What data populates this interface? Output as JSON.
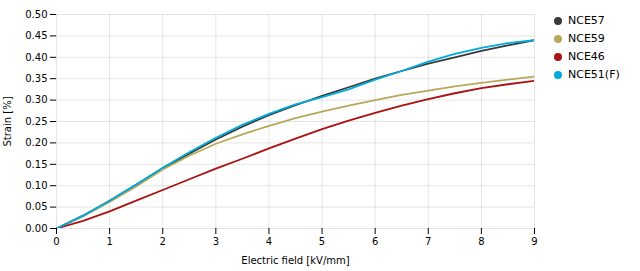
{
  "chart_data": {
    "type": "line",
    "xlabel": "Electric field [kV/mm]",
    "ylabel": "Strain [%]",
    "x": [
      0,
      0.5,
      1,
      1.5,
      2,
      2.5,
      3,
      3.5,
      4,
      4.5,
      5,
      5.5,
      6,
      6.5,
      7,
      7.5,
      8,
      8.5,
      9
    ],
    "series": [
      {
        "name": "NCE57",
        "color": "#3a3a3a",
        "values": [
          0.0,
          0.03,
          0.065,
          0.102,
          0.14,
          0.175,
          0.208,
          0.238,
          0.265,
          0.288,
          0.31,
          0.33,
          0.35,
          0.368,
          0.385,
          0.4,
          0.415,
          0.428,
          0.44
        ]
      },
      {
        "name": "NCE59",
        "color": "#b8a85a",
        "values": [
          0.0,
          0.028,
          0.062,
          0.098,
          0.138,
          0.17,
          0.198,
          0.22,
          0.24,
          0.258,
          0.273,
          0.287,
          0.3,
          0.312,
          0.322,
          0.332,
          0.34,
          0.348,
          0.355
        ]
      },
      {
        "name": "NCE46",
        "color": "#aa1111",
        "values": [
          0.0,
          0.018,
          0.04,
          0.065,
          0.09,
          0.115,
          0.14,
          0.163,
          0.187,
          0.21,
          0.232,
          0.252,
          0.27,
          0.287,
          0.302,
          0.316,
          0.328,
          0.337,
          0.345
        ]
      },
      {
        "name": "NCE51(F)",
        "color": "#00aadd",
        "values": [
          0.0,
          0.03,
          0.065,
          0.103,
          0.142,
          0.178,
          0.212,
          0.242,
          0.268,
          0.29,
          0.307,
          0.325,
          0.348,
          0.368,
          0.39,
          0.408,
          0.422,
          0.433,
          0.44
        ]
      }
    ],
    "xlim": [
      0,
      9
    ],
    "xticks": [
      0,
      1,
      2,
      3,
      4,
      5,
      6,
      7,
      8,
      9
    ],
    "ylim": [
      0,
      0.5
    ],
    "yticks": [
      {
        "value": 0,
        "label": "0.00"
      },
      0.05,
      {
        "value": 0.1,
        "label": "0.10"
      },
      0.15,
      {
        "value": 0.2,
        "label": "0.20"
      },
      0.25,
      {
        "value": 0.3,
        "label": "0.30"
      },
      0.35,
      {
        "value": 0.4,
        "label": "0.40"
      },
      0.45,
      {
        "value": 0.5,
        "label": "0.50"
      }
    ],
    "grid": true,
    "legend": "right"
  }
}
